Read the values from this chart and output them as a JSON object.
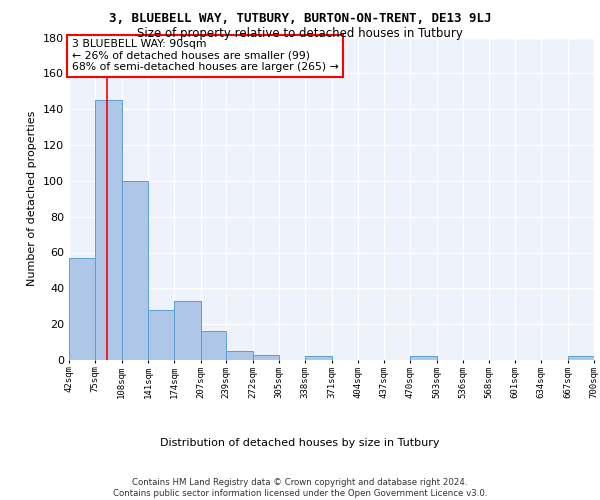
{
  "title_line1": "3, BLUEBELL WAY, TUTBURY, BURTON-ON-TRENT, DE13 9LJ",
  "title_line2": "Size of property relative to detached houses in Tutbury",
  "xlabel": "Distribution of detached houses by size in Tutbury",
  "ylabel": "Number of detached properties",
  "bin_edges": [
    42,
    75,
    108,
    141,
    174,
    207,
    239,
    272,
    305,
    338,
    371,
    404,
    437,
    470,
    503,
    536,
    568,
    601,
    634,
    667,
    700
  ],
  "bar_heights": [
    57,
    145,
    100,
    28,
    33,
    16,
    5,
    3,
    0,
    2,
    0,
    0,
    0,
    2,
    0,
    0,
    0,
    0,
    0,
    2
  ],
  "bar_color": "#aec6e8",
  "bar_edge_color": "#5a9fd4",
  "red_line_x": 90,
  "annotation_text": "3 BLUEBELL WAY: 90sqm\n← 26% of detached houses are smaller (99)\n68% of semi-detached houses are larger (265) →",
  "annotation_box_color": "white",
  "annotation_box_edge_color": "red",
  "footer_text": "Contains HM Land Registry data © Crown copyright and database right 2024.\nContains public sector information licensed under the Open Government Licence v3.0.",
  "ylim": [
    0,
    180
  ],
  "background_color": "#eef2fb",
  "grid_color": "white",
  "tick_labels": [
    "42sqm",
    "75sqm",
    "108sqm",
    "141sqm",
    "174sqm",
    "207sqm",
    "239sqm",
    "272sqm",
    "305sqm",
    "338sqm",
    "371sqm",
    "404sqm",
    "437sqm",
    "470sqm",
    "503sqm",
    "536sqm",
    "568sqm",
    "601sqm",
    "634sqm",
    "667sqm",
    "700sqm"
  ],
  "yticks": [
    0,
    20,
    40,
    60,
    80,
    100,
    120,
    140,
    160,
    180
  ]
}
